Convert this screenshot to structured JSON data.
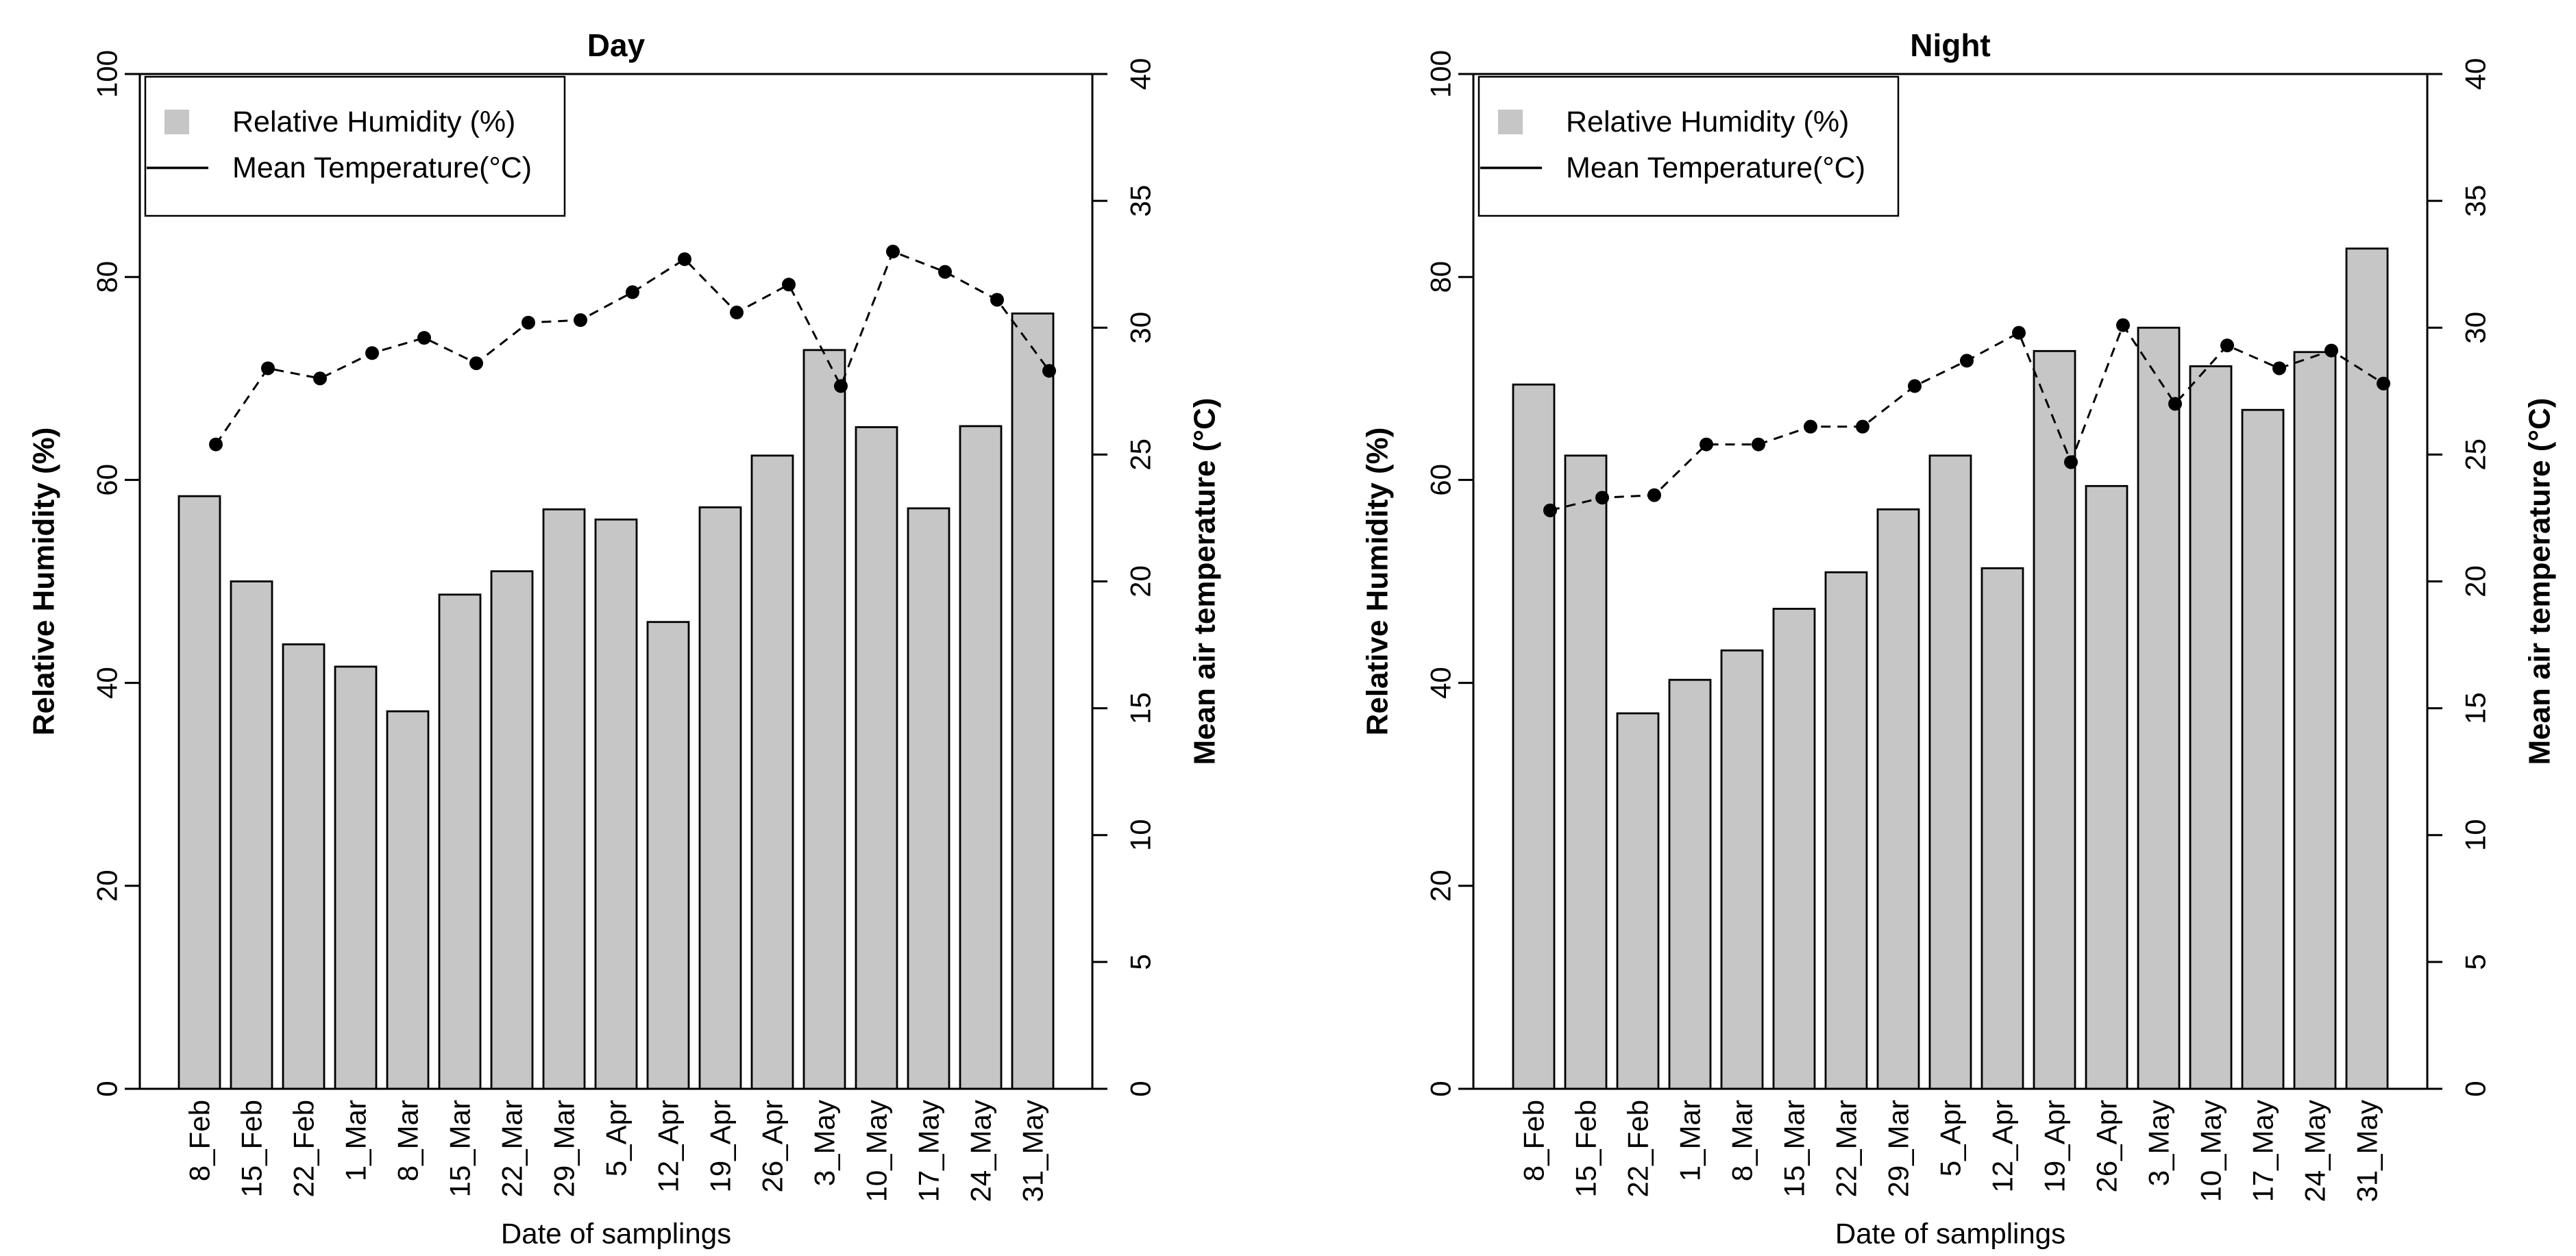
{
  "figure": {
    "background": "#ffffff",
    "description": "Two-panel R-style chart: Relative Humidity bars with Mean Temperature dashed point-line, Day vs Night"
  },
  "style": {
    "bar_fill": "#c6c6c6",
    "bar_stroke": "#000000",
    "line_color": "#000000",
    "point_color": "#000000",
    "axis_color": "#000000",
    "legend_box_fill": "#ffffff",
    "legend_box_stroke": "#000000"
  },
  "chart_data": [
    {
      "type": "bar",
      "title": "Day",
      "categories": [
        "8_Feb",
        "15_Feb",
        "22_Feb",
        "1_Mar",
        "8_Mar",
        "15_Mar",
        "22_Mar",
        "29_Mar",
        "5_Apr",
        "12_Apr",
        "19_Apr",
        "26_Apr",
        "3_May",
        "10_May",
        "17_May",
        "24_May",
        "31_May"
      ],
      "series": [
        {
          "name": "Relative Humidity (%)",
          "kind": "bar",
          "axis": "left",
          "values": [
            58.4,
            50.0,
            43.8,
            41.6,
            37.2,
            48.7,
            51.0,
            57.1,
            56.1,
            46.0,
            57.3,
            62.4,
            72.8,
            65.2,
            57.2,
            65.3,
            76.4
          ]
        },
        {
          "name": "Mean Temperature(°C)",
          "kind": "line",
          "axis": "right",
          "values": [
            25.4,
            28.4,
            28.0,
            29.0,
            29.6,
            28.6,
            30.2,
            30.3,
            31.4,
            32.7,
            30.6,
            31.7,
            27.7,
            33.0,
            32.2,
            31.1,
            28.3
          ]
        }
      ],
      "xlabel": "Date of samplings",
      "ylabel_left": "Relative Humidity (%)",
      "ylabel_right": "Mean air temperature (°C)",
      "ylim_left": [
        0,
        100
      ],
      "ylim_right": [
        0,
        40
      ],
      "yticks_left": [
        0,
        20,
        40,
        60,
        80,
        100
      ],
      "yticks_right": [
        0,
        5,
        10,
        15,
        20,
        25,
        30,
        35,
        40
      ],
      "legend": {
        "items": [
          "Relative Humidity (%)",
          "Mean Temperature(°C)"
        ],
        "position": "top-left"
      },
      "grid": false
    },
    {
      "type": "bar",
      "title": "Night",
      "categories": [
        "8_Feb",
        "15_Feb",
        "22_Feb",
        "1_Mar",
        "8_Mar",
        "15_Mar",
        "22_Mar",
        "29_Mar",
        "5_Apr",
        "12_Apr",
        "19_Apr",
        "26_Apr",
        "3_May",
        "10_May",
        "17_May",
        "24_May",
        "31_May"
      ],
      "series": [
        {
          "name": "Relative Humidity (%)",
          "kind": "bar",
          "axis": "left",
          "values": [
            69.4,
            62.4,
            37.0,
            40.3,
            43.2,
            47.3,
            50.9,
            57.1,
            62.4,
            51.3,
            72.7,
            59.4,
            75.0,
            71.2,
            66.9,
            72.6,
            82.8
          ]
        },
        {
          "name": "Mean Temperature(°C)",
          "kind": "line",
          "axis": "right",
          "values": [
            22.8,
            23.3,
            23.4,
            25.4,
            25.4,
            26.1,
            26.1,
            27.7,
            28.7,
            29.8,
            24.7,
            30.1,
            27.0,
            29.3,
            28.4,
            29.1,
            27.8
          ]
        }
      ],
      "xlabel": "Date of samplings",
      "ylabel_left": "Relative Humidity (%)",
      "ylabel_right": "Mean air temperature (°C)",
      "ylim_left": [
        0,
        100
      ],
      "ylim_right": [
        0,
        40
      ],
      "yticks_left": [
        0,
        20,
        40,
        60,
        80,
        100
      ],
      "yticks_right": [
        0,
        5,
        10,
        15,
        20,
        25,
        30,
        35,
        40
      ],
      "legend": {
        "items": [
          "Relative Humidity (%)",
          "Mean Temperature(°C)"
        ],
        "position": "top-left"
      },
      "grid": false
    }
  ]
}
